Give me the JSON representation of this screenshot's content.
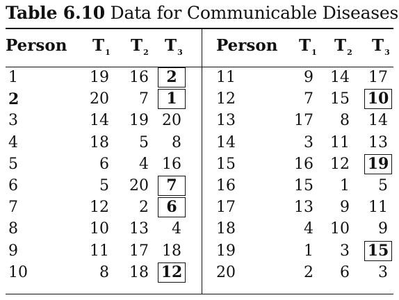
{
  "table": {
    "title_number": "Table 6.10",
    "title_text": "Data for Communicable Diseases",
    "headers": {
      "person": "Person",
      "t1": "T",
      "t1_sub": "1",
      "t2": "T",
      "t2_sub": "2",
      "t3": "T",
      "t3_sub": "3"
    },
    "left_rows": [
      {
        "person": "1",
        "t1": "19",
        "t2": "16",
        "t3": "2",
        "person_bold": false,
        "t3_boxed": true
      },
      {
        "person": "2",
        "t1": "20",
        "t2": "7",
        "t3": "1",
        "person_bold": true,
        "t3_boxed": true
      },
      {
        "person": "3",
        "t1": "14",
        "t2": "19",
        "t3": "20",
        "person_bold": false,
        "t3_boxed": false
      },
      {
        "person": "4",
        "t1": "18",
        "t2": "5",
        "t3": "8",
        "person_bold": false,
        "t3_boxed": false
      },
      {
        "person": "5",
        "t1": "6",
        "t2": "4",
        "t3": "16",
        "person_bold": false,
        "t3_boxed": false
      },
      {
        "person": "6",
        "t1": "5",
        "t2": "20",
        "t3": "7",
        "person_bold": false,
        "t3_boxed": true
      },
      {
        "person": "7",
        "t1": "12",
        "t2": "2",
        "t3": "6",
        "person_bold": false,
        "t3_boxed": true
      },
      {
        "person": "8",
        "t1": "10",
        "t2": "13",
        "t3": "4",
        "person_bold": false,
        "t3_boxed": false
      },
      {
        "person": "9",
        "t1": "11",
        "t2": "17",
        "t3": "18",
        "person_bold": false,
        "t3_boxed": false
      },
      {
        "person": "10",
        "t1": "8",
        "t2": "18",
        "t3": "12",
        "person_bold": false,
        "t3_boxed": true
      }
    ],
    "right_rows": [
      {
        "person": "11",
        "t1": "9",
        "t2": "14",
        "t3": "17",
        "person_bold": false,
        "t3_boxed": false
      },
      {
        "person": "12",
        "t1": "7",
        "t2": "15",
        "t3": "10",
        "person_bold": false,
        "t3_boxed": true
      },
      {
        "person": "13",
        "t1": "17",
        "t2": "8",
        "t3": "14",
        "person_bold": false,
        "t3_boxed": false
      },
      {
        "person": "14",
        "t1": "3",
        "t2": "11",
        "t3": "13",
        "person_bold": false,
        "t3_boxed": false
      },
      {
        "person": "15",
        "t1": "16",
        "t2": "12",
        "t3": "19",
        "person_bold": false,
        "t3_boxed": true
      },
      {
        "person": "16",
        "t1": "15",
        "t2": "1",
        "t3": "5",
        "person_bold": false,
        "t3_boxed": false
      },
      {
        "person": "17",
        "t1": "13",
        "t2": "9",
        "t3": "11",
        "person_bold": false,
        "t3_boxed": false
      },
      {
        "person": "18",
        "t1": "4",
        "t2": "10",
        "t3": "9",
        "person_bold": false,
        "t3_boxed": false
      },
      {
        "person": "19",
        "t1": "1",
        "t2": "3",
        "t3": "15",
        "person_bold": false,
        "t3_boxed": true
      },
      {
        "person": "20",
        "t1": "2",
        "t2": "6",
        "t3": "3",
        "person_bold": false,
        "t3_boxed": false
      }
    ]
  }
}
